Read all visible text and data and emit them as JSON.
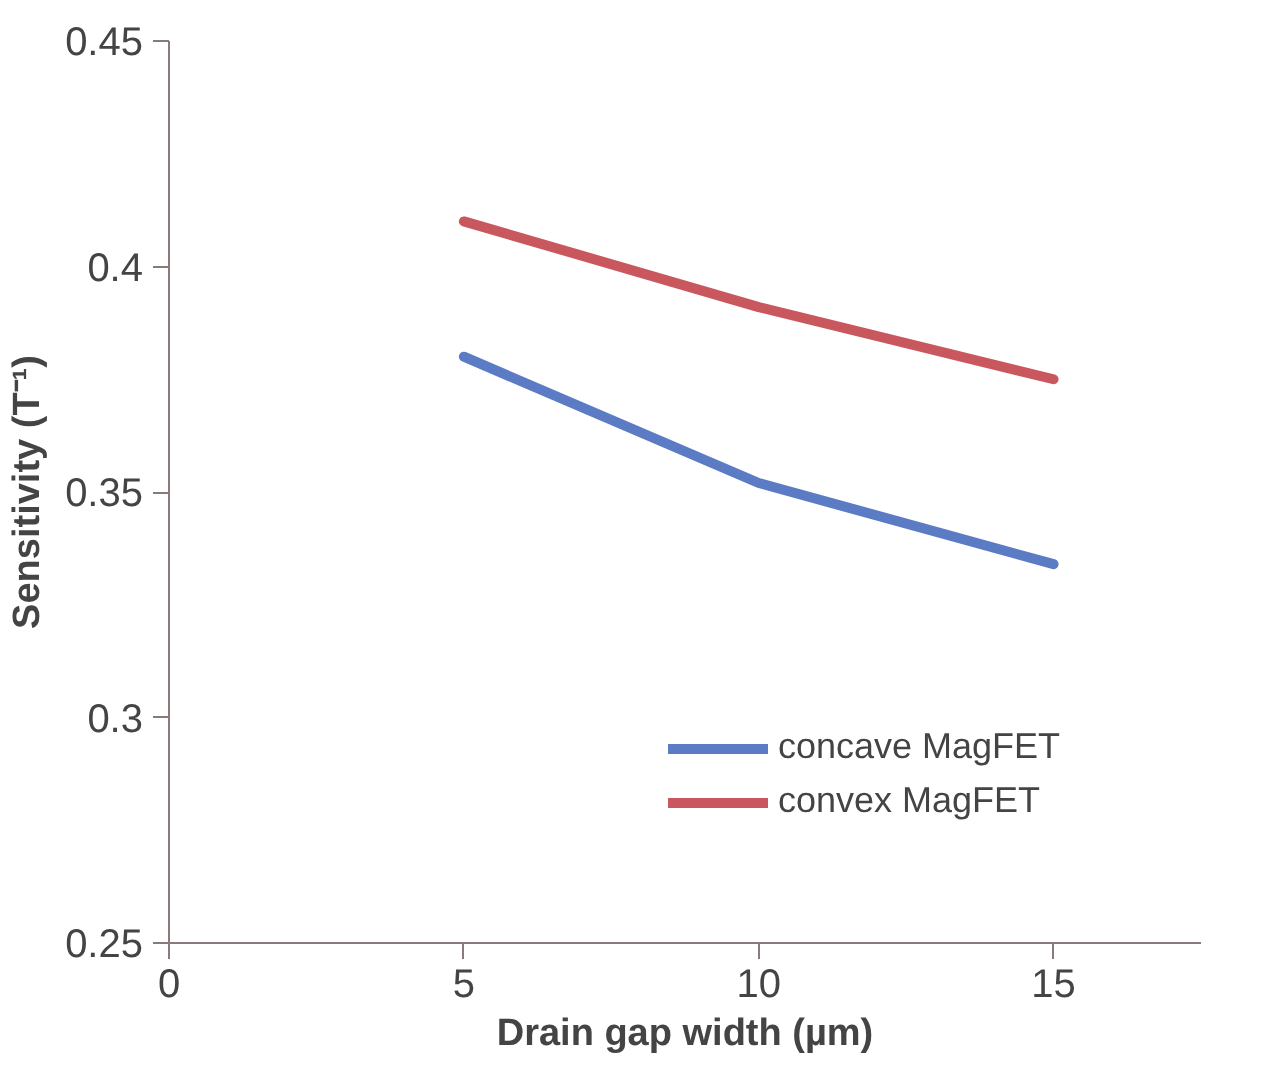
{
  "chart_data": {
    "type": "line",
    "xlabel": "Drain gap width (µm)",
    "ylabel": "Sensitivity (T⁻¹)",
    "x": [
      5,
      10,
      15
    ],
    "series": [
      {
        "name": "concave MagFET",
        "color": "#5b7bc4",
        "values": [
          0.38,
          0.352,
          0.334
        ]
      },
      {
        "name": "convex MagFET",
        "color": "#c9585e",
        "values": [
          0.41,
          0.391,
          0.375
        ]
      }
    ],
    "xlim": [
      0,
      17.5
    ],
    "xticks": [
      0,
      5,
      10,
      15
    ],
    "ylim": [
      0.25,
      0.45
    ],
    "yticks": [
      0.25,
      0.3,
      0.35,
      0.4,
      0.45
    ],
    "grid": false,
    "legend": "right",
    "marker": "none",
    "line_style": "solid"
  }
}
